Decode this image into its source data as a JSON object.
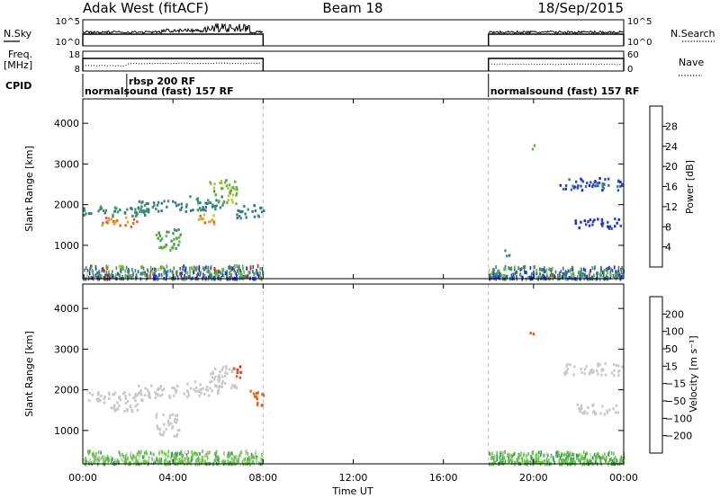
{
  "header": {
    "radar_title": "Adak West (fitACF)",
    "beam_title": "Beam 18",
    "date_title": "18/Sep/2015"
  },
  "strip_labels": {
    "nsky": "N.Sky",
    "nsky_ticks": [
      "10^5",
      "10^0"
    ],
    "nsearch": "N.Search",
    "nsearch_ticks": [
      "10^5",
      "10^0"
    ],
    "freq": "Freq.",
    "freq_unit": "[MHz]",
    "freq_ticks": [
      "18",
      "8"
    ],
    "nave": "Nave",
    "nave_ticks": [
      "60",
      "0"
    ],
    "cpid": "CPID"
  },
  "cpid_segments": [
    {
      "label": "normalsound (fast) 157 RF",
      "start_hour": 0.0,
      "end_hour": 8.0
    },
    {
      "label": "rbsp 200 RF",
      "start_hour": 1.95,
      "end_hour": 8.0
    },
    {
      "label": "normalsound (fast) 157 RF",
      "start_hour": 18.0,
      "end_hour": 24.0
    }
  ],
  "x_axis": {
    "label": "Time UT",
    "ticks": [
      "00:00",
      "04:00",
      "08:00",
      "12:00",
      "16:00",
      "20:00",
      "00:00"
    ],
    "tick_hours": [
      0,
      4,
      8,
      12,
      16,
      20,
      24
    ],
    "range_hours": [
      0,
      24
    ]
  },
  "power_panel": {
    "ylabel": "Slant Range [km]",
    "yticks": [
      "1000",
      "2000",
      "3000",
      "4000"
    ],
    "colorbar_label": "Power [dB]",
    "colorbar_ticks": [
      "28",
      "24",
      "20",
      "16",
      "12",
      "8",
      "4"
    ]
  },
  "velocity_panel": {
    "ylabel": "Slant Range [km]",
    "yticks": [
      "1000",
      "2000",
      "3000",
      "4000"
    ],
    "colorbar_label": "Velocity [m s⁻¹]",
    "colorbar_ticks": [
      "200",
      "100",
      "50",
      "15",
      "−15",
      "−50",
      "−100",
      "−200"
    ]
  },
  "chart_data": [
    {
      "type": "heatmap",
      "title": "",
      "xlabel": "Time UT",
      "ylabel": "Slant Range [km]",
      "xlim": [
        0,
        24
      ],
      "ylim": [
        180,
        4600
      ],
      "colorbar": {
        "label": "Power [dB]",
        "range": [
          0,
          32
        ],
        "bins": [
          0,
          4,
          8,
          12,
          16,
          20,
          24,
          28,
          32
        ],
        "colors": [
          "#1e1ef0",
          "#2850b4",
          "#327a8c",
          "#3c9660",
          "#64b43c",
          "#b4c832",
          "#f0a01e",
          "#f05a14",
          "#e61414"
        ]
      },
      "observation_windows_hours": [
        [
          0,
          8
        ],
        [
          18,
          24
        ]
      ],
      "echo_regions": [
        {
          "t0": 0.0,
          "t1": 8.0,
          "r0": 180,
          "r1": 500,
          "power_db": 10,
          "pattern": "ground-clutter"
        },
        {
          "t0": 0.0,
          "t1": 3.0,
          "r0": 1700,
          "r1": 1950,
          "power_db": 12
        },
        {
          "t0": 0.8,
          "t1": 2.4,
          "r0": 1450,
          "r1": 1700,
          "power_db": 28
        },
        {
          "t0": 2.4,
          "t1": 4.6,
          "r0": 1800,
          "r1": 2100,
          "power_db": 12
        },
        {
          "t0": 3.2,
          "t1": 4.3,
          "r0": 850,
          "r1": 1400,
          "power_db": 16
        },
        {
          "t0": 4.6,
          "t1": 6.2,
          "r0": 1850,
          "r1": 2200,
          "power_db": 12
        },
        {
          "t0": 5.0,
          "t1": 6.0,
          "r0": 1500,
          "r1": 1750,
          "power_db": 26
        },
        {
          "t0": 5.6,
          "t1": 6.8,
          "r0": 2000,
          "r1": 2600,
          "power_db": 18
        },
        {
          "t0": 6.8,
          "t1": 8.0,
          "r0": 1650,
          "r1": 2000,
          "power_db": 10
        },
        {
          "t0": 18.0,
          "t1": 24.0,
          "r0": 180,
          "r1": 480,
          "power_db": 10,
          "pattern": "ground-clutter"
        },
        {
          "t0": 18.7,
          "t1": 19.0,
          "r0": 700,
          "r1": 900,
          "power_db": 12
        },
        {
          "t0": 21.1,
          "t1": 23.9,
          "r0": 2350,
          "r1": 2650,
          "power_db": 6
        },
        {
          "t0": 21.8,
          "t1": 23.9,
          "r0": 1400,
          "r1": 1650,
          "power_db": 4
        },
        {
          "t0": 19.8,
          "t1": 20.0,
          "r0": 3350,
          "r1": 3500,
          "power_db": 20
        }
      ]
    },
    {
      "type": "heatmap",
      "title": "",
      "xlabel": "Time UT",
      "ylabel": "Slant Range [km]",
      "xlim": [
        0,
        24
      ],
      "ylim": [
        180,
        4600
      ],
      "colorbar": {
        "label": "Velocity [m s⁻¹]",
        "bins": [
          -300,
          -200,
          -100,
          -50,
          -15,
          15,
          50,
          100,
          200,
          300
        ],
        "colors": [
          "#e61414",
          "#f05a14",
          "#f0a01e",
          "#f0d23c",
          "#c8c8c8",
          "#64c83c",
          "#3c9660",
          "#3264b4",
          "#1e32c8"
        ]
      },
      "observation_windows_hours": [
        [
          0,
          8
        ],
        [
          18,
          24
        ]
      ],
      "echo_regions": [
        {
          "t0": 0.0,
          "t1": 8.0,
          "r0": 180,
          "r1": 500,
          "velocity": 30,
          "pattern": "ground-clutter"
        },
        {
          "t0": 0.0,
          "t1": 3.0,
          "r0": 1700,
          "r1": 1950,
          "velocity": 0
        },
        {
          "t0": 0.8,
          "t1": 2.4,
          "r0": 1450,
          "r1": 1700,
          "velocity": 0
        },
        {
          "t0": 2.4,
          "t1": 4.6,
          "r0": 1800,
          "r1": 2100,
          "velocity": 0
        },
        {
          "t0": 3.2,
          "t1": 4.3,
          "r0": 850,
          "r1": 1400,
          "velocity": 0
        },
        {
          "t0": 4.6,
          "t1": 6.2,
          "r0": 1850,
          "r1": 2200,
          "velocity": 0
        },
        {
          "t0": 5.6,
          "t1": 6.8,
          "r0": 2000,
          "r1": 2600,
          "velocity": 0
        },
        {
          "t0": 6.6,
          "t1": 7.0,
          "r0": 2250,
          "r1": 2600,
          "velocity": -200
        },
        {
          "t0": 7.4,
          "t1": 8.0,
          "r0": 1600,
          "r1": 2000,
          "velocity": -150
        },
        {
          "t0": 18.0,
          "t1": 24.0,
          "r0": 180,
          "r1": 480,
          "velocity": 40,
          "pattern": "ground-clutter"
        },
        {
          "t0": 21.1,
          "t1": 23.9,
          "r0": 2350,
          "r1": 2650,
          "velocity": 0
        },
        {
          "t0": 21.8,
          "t1": 23.9,
          "r0": 1400,
          "r1": 1650,
          "velocity": 0
        },
        {
          "t0": 19.8,
          "t1": 20.0,
          "r0": 3350,
          "r1": 3500,
          "velocity": -120
        }
      ]
    }
  ]
}
